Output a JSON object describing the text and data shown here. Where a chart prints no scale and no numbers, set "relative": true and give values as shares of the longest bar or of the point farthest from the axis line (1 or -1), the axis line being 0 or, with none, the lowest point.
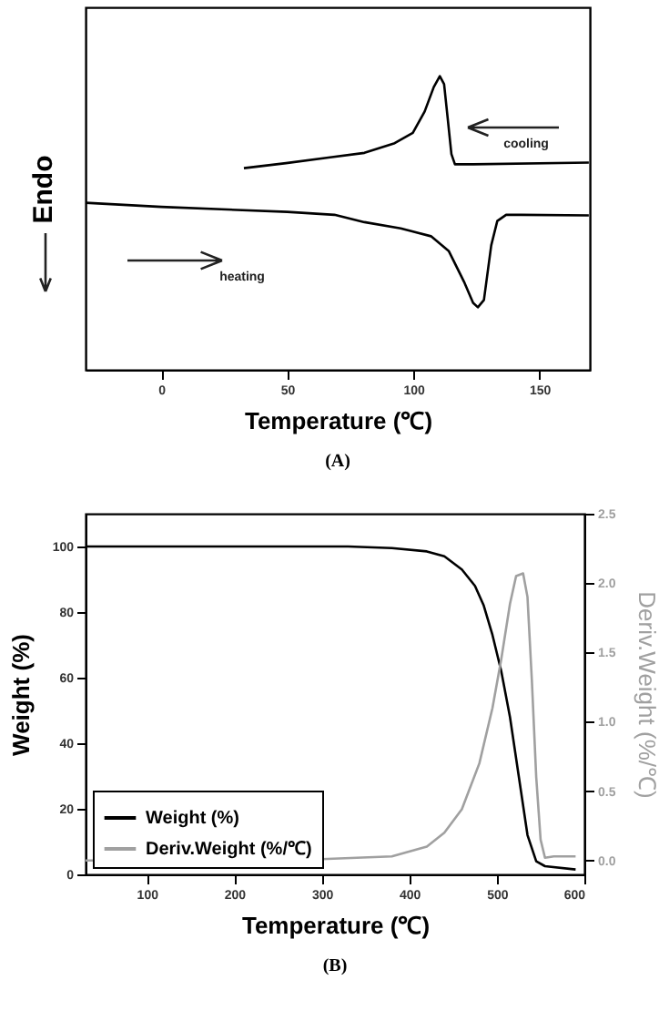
{
  "chart_data": [
    {
      "type": "line",
      "title": "(A)",
      "xlabel": "Temperature (℃)",
      "ylabel": "Endo",
      "relative": true,
      "xlim": [
        -30,
        170
      ],
      "xticks": [
        0,
        50,
        100,
        150
      ],
      "annotations": [
        "cooling",
        "heating"
      ],
      "series": [
        {
          "color": "#000000",
          "x": [
            32.8,
            49.5,
            66.3,
            80.6,
            92.6,
            99.8,
            104.5,
            108.1,
            110.5,
            112.2,
            113.6,
            115.1,
            116.5,
            123.7,
            169.6
          ],
          "values": [
            0.687,
            0.704,
            0.723,
            0.739,
            0.772,
            0.807,
            0.88,
            0.963,
            1.0,
            0.973,
            0.859,
            0.735,
            0.7,
            0.7,
            0.706
          ]
        },
        {
          "color": "#000000",
          "x": [
            -30,
            0,
            50,
            68.7,
            80.6,
            95,
            107,
            114.1,
            120.1,
            123.7,
            125.6,
            128,
            130.9,
            133.3,
            136.8,
            142.8,
            169.6
          ],
          "values": [
            0.569,
            0.555,
            0.538,
            0.528,
            0.503,
            0.482,
            0.455,
            0.404,
            0.3,
            0.228,
            0.213,
            0.238,
            0.424,
            0.507,
            0.528,
            0.528,
            0.526
          ]
        }
      ]
    },
    {
      "type": "line",
      "title": "(B)",
      "xlabel": "Temperature (℃)",
      "ylabel": "Weight (%)",
      "y2label": "Deriv.Weight (%/℃)",
      "xlim": [
        30,
        600
      ],
      "xticks": [
        100,
        200,
        300,
        400,
        500,
        600
      ],
      "ylim": [
        0,
        110
      ],
      "yticks": [
        0,
        20,
        40,
        60,
        80,
        100
      ],
      "y2lim": [
        -0.1,
        2.5
      ],
      "y2ticks": [
        {
          "value": 0,
          "label": "0.0"
        },
        0.5,
        {
          "value": 1,
          "label": "1.0"
        },
        1.5,
        {
          "value": 2,
          "label": "2.0"
        },
        2.5
      ],
      "legend": "bottom left",
      "series": [
        {
          "name": "Weight (%)",
          "color": "#000000",
          "x": [
            30,
            330,
            380,
            420,
            440,
            460,
            475,
            485,
            495,
            505,
            515,
            525,
            535,
            545,
            555,
            590
          ],
          "values": [
            100,
            100,
            99.5,
            98.5,
            97,
            93,
            88,
            82,
            73,
            62,
            48,
            30,
            12,
            4,
            2.5,
            1.5
          ]
        },
        {
          "name": "Deriv.Weight (%/℃)",
          "color": "#a0a0a0",
          "axis": "y2",
          "x": [
            30,
            300,
            380,
            420,
            440,
            460,
            480,
            495,
            505,
            515,
            522,
            530,
            535,
            540,
            545,
            550,
            555,
            565,
            590
          ],
          "values": [
            0.0,
            0.01,
            0.03,
            0.1,
            0.2,
            0.37,
            0.7,
            1.1,
            1.45,
            1.85,
            2.05,
            2.07,
            1.9,
            1.3,
            0.6,
            0.15,
            0.02,
            0.03,
            0.03
          ]
        }
      ]
    }
  ]
}
